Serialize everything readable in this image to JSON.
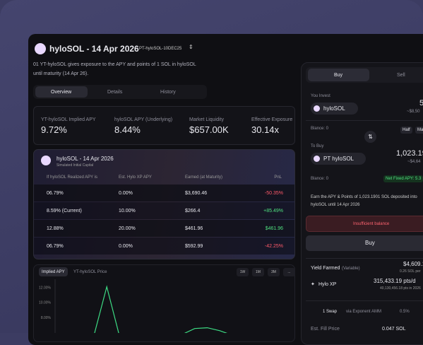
{
  "header": {
    "title": "hyloSOL - 14 Apr 2026",
    "badge": "PT-hyloSOL-10DEC25",
    "description": "01 YT-hyloSOL gives exposure to the APY and points of 1 SOL in hyloSOL until maturity (14 Apr 26)."
  },
  "tabs": [
    "Overview",
    "Details",
    "History"
  ],
  "stats": [
    {
      "label": "YT-hyloSOL Implied APY",
      "value": "9.72%"
    },
    {
      "label": "hyloSOL APY (Underlying)",
      "value": "8.44%"
    },
    {
      "label": "Market Liquidity",
      "value": "$657.00K"
    },
    {
      "label": "Effective Exposure",
      "value": "30.14x"
    }
  ],
  "table": {
    "title": "hyloSOL - 14 Apr 2026",
    "subtitle": "Simulated Initial Capital",
    "columns": [
      "If hyloSOL Realized APY is",
      "Est. Hylo XP APY",
      "Earned (at Maturity)",
      "PnL"
    ],
    "rows": [
      [
        "06.79%",
        "0.00%",
        "$3,690.46",
        "-50.35%"
      ],
      [
        "8.59% (Current)",
        "10.00%",
        "$266.4",
        "+85.49%"
      ],
      [
        "12.88%",
        "20.00%",
        "$461.96",
        "$461.96"
      ],
      [
        "06.79%",
        "0.00%",
        "$592.99",
        "-42.25%"
      ]
    ]
  },
  "chart_tabs": [
    "Implied APY",
    "YT-hyloSOL Price"
  ],
  "ranges": [
    "1W",
    "1M",
    "3M",
    "..."
  ],
  "chart_data": {
    "type": "line",
    "color": "#3ddc84",
    "ylim": [
      5.9,
      13.1
    ],
    "yticks": [
      {
        "value": 12,
        "label": "12.00%"
      },
      {
        "value": 10,
        "label": "10.00%"
      },
      {
        "value": 8,
        "label": "8.00%"
      }
    ],
    "values": [
      5.6,
      5.6,
      5.6,
      5.7,
      12.1,
      5.6,
      5.6,
      5.7,
      5.6,
      5.6,
      5.7,
      6.5,
      6.6,
      6.2,
      5.6,
      5.6,
      5.7,
      5.6,
      5.6,
      5.6
    ]
  },
  "trade": {
    "tabs": [
      "Buy",
      "Sell"
    ],
    "invest_label": "You Invest",
    "invest_token": "hyloSOL",
    "invest_amount": "5",
    "invest_usd": "~$8,50",
    "balance1": "Blance: 0",
    "half": "Half",
    "max": "Max",
    "buy_label": "To Buy",
    "buy_token": "PT hyloSOL",
    "buy_amount": "1,023.1901",
    "buy_usd": "~$4,64",
    "balance2": "Blance: 0",
    "net_apy": "Net Fixed APY: 5.3",
    "earn_text": "Earn the APY & Points of 1,023.1901 SOL deposited into hyloSOL until 14 Apr 2026",
    "warning": "Insufficient balance",
    "button": "Buy",
    "yield_label": "Yield Farmed",
    "yield_note": "(Variable)",
    "yield_value": "$4,609.1",
    "yield_sub": "0.26 SOL per",
    "xp_label": "Hylo XP",
    "xp_value": "315,433.19 pts/d",
    "xp_sub": "40,130,456.18 pts in 2026",
    "swap": "1 Swap",
    "via": "via Exponent AMM",
    "slippage": "0.5%",
    "fill_label": "Est. Fill Price",
    "fill_value": "0.047 SOL"
  }
}
